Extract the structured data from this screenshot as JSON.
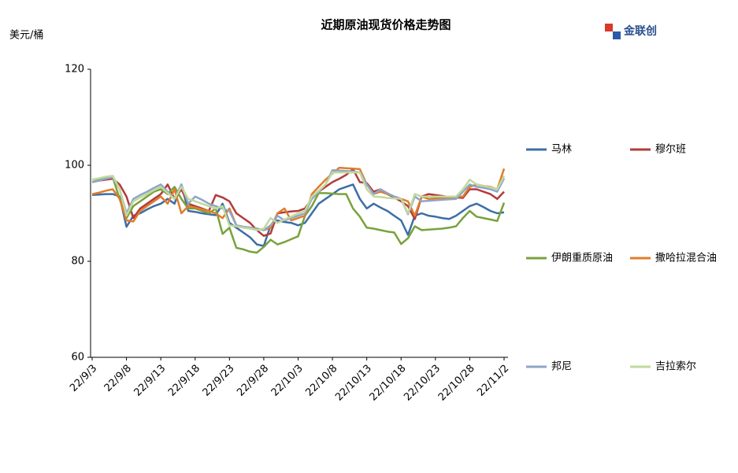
{
  "chart_data": {
    "type": "line",
    "title": "近期原油现货价格走势图",
    "y_label": "美元/桶",
    "logo": "金联创",
    "categories": [
      "22/9/3",
      null,
      null,
      null,
      null,
      "22/9/8",
      null,
      null,
      null,
      null,
      "22/9/13",
      null,
      null,
      null,
      null,
      "22/9/18",
      null,
      null,
      null,
      null,
      "22/9/23",
      null,
      null,
      null,
      null,
      "22/9/28",
      null,
      null,
      null,
      null,
      "22/10/3",
      null,
      null,
      null,
      null,
      "22/10/8",
      null,
      null,
      null,
      null,
      "22/10/13",
      null,
      null,
      null,
      null,
      "22/10/18",
      null,
      null,
      null,
      null,
      "22/10/23",
      null,
      null,
      null,
      null,
      "22/10/28",
      null,
      null,
      null,
      null,
      "22/11/2"
    ],
    "ylim": [
      60,
      120
    ],
    "yticks": [
      60,
      80,
      100,
      120
    ],
    "legend": "right",
    "series": [
      {
        "name": "马林",
        "color": "#3d6ea5",
        "values": [
          93.8,
          93.9,
          94,
          94,
          93.5,
          87.2,
          89.5,
          90,
          90.8,
          91.5,
          92,
          93,
          92,
          96,
          90.5,
          90.3,
          90,
          89.8,
          89.6,
          92,
          88,
          87,
          86,
          85,
          83.5,
          83.2,
          87.5,
          88.5,
          88.2,
          88,
          87.5,
          88,
          90,
          92,
          93,
          94,
          95,
          95.5,
          96,
          93,
          91,
          92,
          91.2,
          90.5,
          89.5,
          88.5,
          85.5,
          89.5,
          90,
          89.5,
          89.3,
          89,
          88.8,
          89.5,
          90.5,
          91.5,
          92,
          91.3,
          90.5,
          90,
          90.2
        ]
      },
      {
        "name": "穆尔班",
        "color": "#b23b3b",
        "values": [
          96.5,
          96.8,
          97,
          97.2,
          96,
          93.5,
          89,
          91,
          92,
          93,
          94,
          96,
          93,
          95,
          92,
          91.5,
          91,
          90.5,
          93.8,
          93.3,
          92.5,
          90,
          89,
          88,
          86.5,
          85.3,
          85.8,
          90,
          90.2,
          90.4,
          90.5,
          91,
          93,
          94.5,
          95.5,
          96.5,
          97.2,
          98,
          99.2,
          96.5,
          96.3,
          94.5,
          95,
          94,
          93.3,
          92.5,
          91.5,
          88.8,
          93.5,
          94,
          93.8,
          93.6,
          93.4,
          93.3,
          93.2,
          95,
          95,
          94.5,
          94,
          93,
          94.5
        ]
      },
      {
        "name": "伊朗重质原油",
        "color": "#78a23c",
        "values": [
          97,
          97.2,
          97.4,
          97.5,
          93,
          89,
          91.5,
          92.5,
          93.5,
          94.5,
          95,
          94,
          95.5,
          93,
          91,
          91,
          90.5,
          90,
          91,
          85.7,
          87,
          82.8,
          82.5,
          82,
          81.8,
          83,
          84.5,
          83.5,
          84,
          84.6,
          85.2,
          89.5,
          91.5,
          94.2,
          94.2,
          94.1,
          94,
          94,
          91,
          89.3,
          87,
          86.8,
          86.5,
          86.2,
          86,
          83.6,
          84.8,
          87.3,
          86.5,
          86.6,
          86.7,
          86.8,
          87,
          87.3,
          89,
          90.5,
          89.3,
          89,
          88.7,
          88.4,
          92.2
        ]
      },
      {
        "name": "撒哈拉混合油",
        "color": "#e07c2b",
        "values": [
          94,
          94.3,
          94.7,
          95,
          93,
          88.5,
          88.3,
          90.5,
          91.5,
          92.5,
          93.5,
          92,
          95,
          90,
          91.5,
          91.2,
          90.8,
          90.5,
          90,
          89,
          91,
          87.5,
          87.2,
          87,
          86.8,
          86.5,
          87,
          90,
          91,
          88.5,
          89,
          89.5,
          94,
          95.5,
          97,
          98.3,
          99.5,
          99.4,
          99.3,
          99.2,
          96,
          94,
          94.5,
          94,
          93.5,
          93,
          92.5,
          89.5,
          93.5,
          93,
          93.1,
          93.2,
          93.3,
          93.4,
          93.5,
          95.5,
          96,
          95.7,
          95.5,
          95,
          99.3
        ]
      },
      {
        "name": "邦尼",
        "color": "#8ea6c9",
        "values": [
          96.5,
          96.8,
          97.2,
          97.5,
          95,
          90,
          93,
          93.8,
          94.5,
          95.3,
          96,
          94.5,
          93,
          96,
          92,
          93.5,
          92.8,
          92,
          91.5,
          91,
          90.5,
          87.5,
          87.2,
          87,
          86.8,
          86.5,
          87.5,
          89.5,
          88.5,
          89,
          89.5,
          90,
          93,
          94.5,
          96,
          99,
          98.9,
          98.8,
          98.7,
          98.5,
          96,
          94,
          95,
          94.2,
          93.5,
          93,
          89.8,
          93.5,
          92.5,
          92.6,
          92.7,
          92.8,
          92.9,
          93,
          94.5,
          96,
          95.5,
          95.3,
          95,
          94.5,
          97.3
        ]
      },
      {
        "name": "吉拉索尔",
        "color": "#c1d99b",
        "values": [
          97,
          97.3,
          97.6,
          97.8,
          95,
          89.5,
          92.5,
          93.3,
          94,
          94.8,
          95.5,
          94.2,
          93,
          95.5,
          93,
          92.5,
          92,
          91.5,
          91,
          91.5,
          87.5,
          87.3,
          87,
          86.8,
          86.5,
          86.8,
          89,
          88,
          88.7,
          89.3,
          90,
          90.5,
          93.5,
          94.7,
          96,
          98.5,
          98.5,
          98.5,
          98.5,
          98.5,
          95,
          93.5,
          93.4,
          93.2,
          93.1,
          93,
          90,
          94,
          93.5,
          93.5,
          93.5,
          93.5,
          93.5,
          93.5,
          95,
          97,
          96,
          95.7,
          95.4,
          95,
          97.8
        ]
      }
    ]
  }
}
